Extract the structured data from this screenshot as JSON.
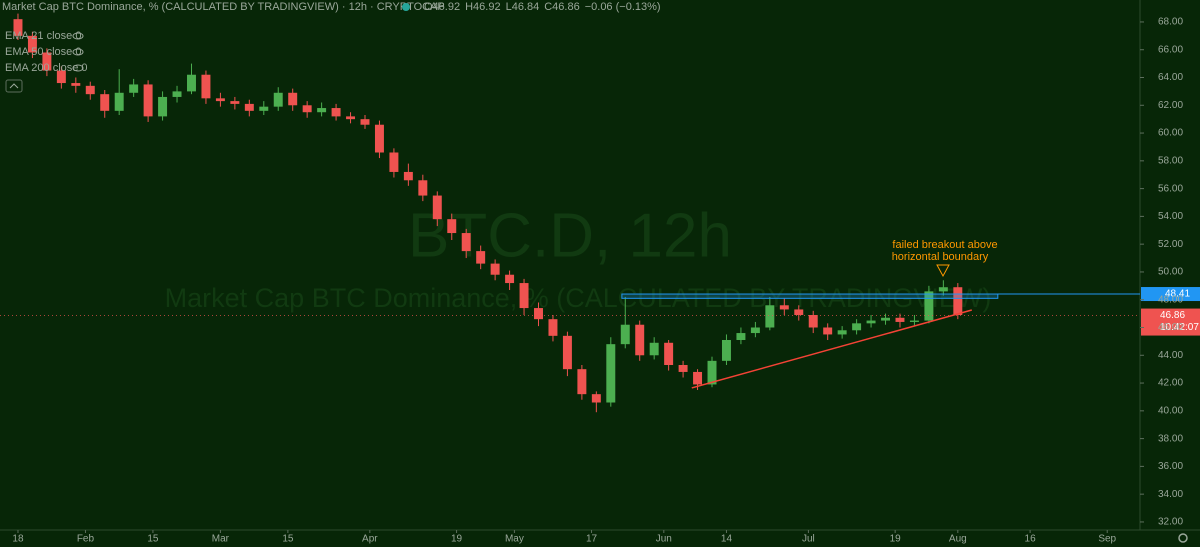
{
  "chart_data": {
    "type": "candlestick",
    "title": "Market Cap BTC Dominance, % (CALCULATED BY TRADINGVIEW) · 12h · CRYPTOCAP",
    "ohlc_header": [
      "O46.92",
      "H46.92",
      "L46.84",
      "C46.86",
      "−0.06 (−0.13%)"
    ],
    "indicators": [
      "EMA 21 close 0",
      "EMA 50 close 0",
      "EMA 200 close 0"
    ],
    "watermark": [
      "BTC.D, 12h",
      "Market Cap BTC Dominance, % (CALCULATED BY TRADINGVIEW)"
    ],
    "annotation": [
      "failed breakout above",
      "horizontal boundary"
    ],
    "up_color": "#4caf50",
    "down_color": "#ef5350",
    "x": [
      0,
      3,
      6,
      9,
      12,
      15,
      18,
      21,
      24,
      27,
      30,
      33,
      36,
      39,
      42,
      45,
      48,
      51,
      54,
      57,
      60,
      63,
      66,
      69,
      72,
      75,
      78,
      81,
      84,
      87,
      90,
      93,
      96,
      99,
      102,
      105,
      108,
      111,
      114,
      117,
      120,
      123,
      126,
      129,
      132,
      135,
      138,
      141,
      144,
      147,
      150,
      153,
      156,
      159,
      162,
      165,
      168,
      171,
      174,
      177,
      180,
      183,
      186,
      189,
      192,
      195
    ],
    "open": [
      68.2,
      67.0,
      65.8,
      64.5,
      63.6,
      63.4,
      62.8,
      61.6,
      62.9,
      63.5,
      61.2,
      62.6,
      63.0,
      64.2,
      62.5,
      62.3,
      62.1,
      61.6,
      61.9,
      62.9,
      62.0,
      61.5,
      61.8,
      61.2,
      61.0,
      60.6,
      58.6,
      57.2,
      56.6,
      55.5,
      53.8,
      52.8,
      51.5,
      50.6,
      49.8,
      49.2,
      47.4,
      46.6,
      45.4,
      43.0,
      41.2,
      40.6,
      44.8,
      46.2,
      44.0,
      44.9,
      43.3,
      42.8,
      41.9,
      43.6,
      45.1,
      45.6,
      46.0,
      47.6,
      47.3,
      46.9,
      46.0,
      45.5,
      45.8,
      46.3,
      46.5,
      46.7,
      46.4,
      46.5,
      48.6,
      48.9
    ],
    "high": [
      68.6,
      67.3,
      66.1,
      64.8,
      64.0,
      63.7,
      63.1,
      64.6,
      63.9,
      63.8,
      63.0,
      63.4,
      65.0,
      64.5,
      62.9,
      62.6,
      62.4,
      62.3,
      63.3,
      63.2,
      62.3,
      62.2,
      62.1,
      61.5,
      61.3,
      60.9,
      58.9,
      57.8,
      57.0,
      55.8,
      54.2,
      53.1,
      51.9,
      50.9,
      50.1,
      49.5,
      47.8,
      46.9,
      45.7,
      43.3,
      41.4,
      45.3,
      48.2,
      46.5,
      45.3,
      45.1,
      43.6,
      43.0,
      43.9,
      45.5,
      46.0,
      46.4,
      48.2,
      48.1,
      47.6,
      47.2,
      46.3,
      46.1,
      46.6,
      46.9,
      47.0,
      47.0,
      46.9,
      49.0,
      49.4,
      49.2
    ],
    "low": [
      66.7,
      65.4,
      64.1,
      63.2,
      62.9,
      62.4,
      61.1,
      61.3,
      62.6,
      60.8,
      60.9,
      62.2,
      62.8,
      62.1,
      61.9,
      61.7,
      61.2,
      61.3,
      61.6,
      61.6,
      61.1,
      61.2,
      60.9,
      60.7,
      60.3,
      58.2,
      56.8,
      56.2,
      55.1,
      53.3,
      52.3,
      51.0,
      50.2,
      49.4,
      48.7,
      46.9,
      46.1,
      45.0,
      42.5,
      40.8,
      39.9,
      40.3,
      44.5,
      43.6,
      43.7,
      42.9,
      42.4,
      41.5,
      41.7,
      43.3,
      44.8,
      45.3,
      45.8,
      46.9,
      46.5,
      45.6,
      45.1,
      45.2,
      45.5,
      46.0,
      46.2,
      46.0,
      46.1,
      46.3,
      48.3,
      46.6
    ],
    "close": [
      67.0,
      65.8,
      64.5,
      63.6,
      63.4,
      62.8,
      61.6,
      62.9,
      63.5,
      61.2,
      62.6,
      63.0,
      64.2,
      62.5,
      62.3,
      62.1,
      61.6,
      61.9,
      62.9,
      62.0,
      61.5,
      61.8,
      61.2,
      61.0,
      60.6,
      58.6,
      57.2,
      56.6,
      55.5,
      53.8,
      52.8,
      51.5,
      50.6,
      49.8,
      49.2,
      47.4,
      46.6,
      45.4,
      43.0,
      41.2,
      40.6,
      44.8,
      46.2,
      44.0,
      44.9,
      43.3,
      42.8,
      41.9,
      43.6,
      45.1,
      45.6,
      46.0,
      47.6,
      47.3,
      46.9,
      46.0,
      45.5,
      45.8,
      46.3,
      46.5,
      46.7,
      46.4,
      46.5,
      48.6,
      48.9,
      46.9
    ],
    "level": 48.41,
    "level_box": {
      "x": [
        125.3,
        203.3
      ],
      "y": [
        48.1,
        48.41
      ]
    },
    "trendline": {
      "x": [
        139.8,
        197.9
      ],
      "y": [
        41.65,
        47.26
      ]
    },
    "last_price": 46.86,
    "countdown": "10:42:07",
    "xlim": [
      -3.73,
      232.8
    ],
    "ylim": [
      31.42,
      69.58
    ],
    "xticks": [
      {
        "value": 0,
        "label": "18"
      },
      {
        "value": 14,
        "label": "Feb"
      },
      {
        "value": 28,
        "label": "15"
      },
      {
        "value": 42,
        "label": "Mar"
      },
      {
        "value": 56,
        "label": "15"
      },
      {
        "value": 73,
        "label": "Apr"
      },
      {
        "value": 91,
        "label": "19"
      },
      {
        "value": 103,
        "label": "May"
      },
      {
        "value": 119,
        "label": "17"
      },
      {
        "value": 134,
        "label": "Jun"
      },
      {
        "value": 147,
        "label": "14"
      },
      {
        "value": 164,
        "label": "Jul"
      },
      {
        "value": 182,
        "label": "19"
      },
      {
        "value": 195,
        "label": "Aug"
      },
      {
        "value": 210,
        "label": "16"
      },
      {
        "value": 226,
        "label": "Sep"
      }
    ],
    "yticks": [
      {
        "value": 32,
        "label": "32.00"
      },
      {
        "value": 34,
        "label": "34.00"
      },
      {
        "value": 36,
        "label": "36.00"
      },
      {
        "value": 38,
        "label": "38.00"
      },
      {
        "value": 40,
        "label": "40.00"
      },
      {
        "value": 42,
        "label": "42.00"
      },
      {
        "value": 44,
        "label": "44.00"
      },
      {
        "value": 46,
        "label": "46.00"
      },
      {
        "value": 48,
        "label": "48.00"
      },
      {
        "value": 50,
        "label": "50.00"
      },
      {
        "value": 52,
        "label": "52.00"
      },
      {
        "value": 54,
        "label": "54.00"
      },
      {
        "value": 56,
        "label": "56.00"
      },
      {
        "value": 58,
        "label": "58.00"
      },
      {
        "value": 60,
        "label": "60.00"
      },
      {
        "value": 62,
        "label": "62.00"
      },
      {
        "value": 64,
        "label": "64.00"
      },
      {
        "value": 66,
        "label": "66.00"
      },
      {
        "value": 68,
        "label": "68.00"
      }
    ]
  }
}
